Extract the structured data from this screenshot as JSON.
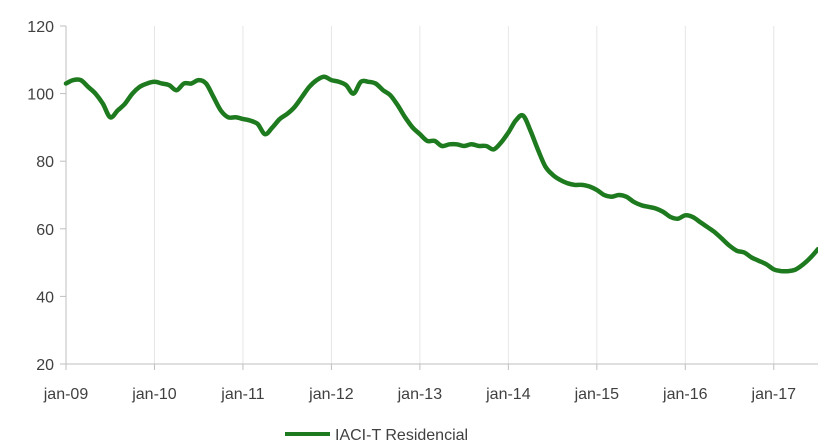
{
  "chart_data": {
    "type": "line",
    "title": "",
    "xlabel": "",
    "ylabel": "",
    "ylim": [
      20,
      120
    ],
    "yticks": [
      20,
      40,
      60,
      80,
      100,
      120
    ],
    "xticks": [
      "jan-09",
      "jan-10",
      "jan-11",
      "jan-12",
      "jan-13",
      "jan-14",
      "jan-15",
      "jan-16",
      "jan-17"
    ],
    "xrange": [
      "2009-01",
      "2017-07"
    ],
    "grid": "vertical",
    "legend_position": "bottom",
    "series": [
      {
        "name": "IACI-T Residencial",
        "color": "#1e7a1e",
        "points": [
          [
            "2009-01",
            103
          ],
          [
            "2009-02",
            104
          ],
          [
            "2009-03",
            104
          ],
          [
            "2009-04",
            102
          ],
          [
            "2009-05",
            100
          ],
          [
            "2009-06",
            97
          ],
          [
            "2009-07",
            93
          ],
          [
            "2009-08",
            95
          ],
          [
            "2009-09",
            97
          ],
          [
            "2009-10",
            100
          ],
          [
            "2009-11",
            102
          ],
          [
            "2009-12",
            103
          ],
          [
            "2010-01",
            103.5
          ],
          [
            "2010-02",
            103
          ],
          [
            "2010-03",
            102.5
          ],
          [
            "2010-04",
            101
          ],
          [
            "2010-05",
            103
          ],
          [
            "2010-06",
            103
          ],
          [
            "2010-07",
            104
          ],
          [
            "2010-08",
            103
          ],
          [
            "2010-09",
            99
          ],
          [
            "2010-10",
            95
          ],
          [
            "2010-11",
            93
          ],
          [
            "2010-12",
            93
          ],
          [
            "2011-01",
            92.5
          ],
          [
            "2011-02",
            92
          ],
          [
            "2011-03",
            91
          ],
          [
            "2011-04",
            88
          ],
          [
            "2011-05",
            90
          ],
          [
            "2011-06",
            92.5
          ],
          [
            "2011-07",
            94
          ],
          [
            "2011-08",
            96
          ],
          [
            "2011-09",
            99
          ],
          [
            "2011-10",
            102
          ],
          [
            "2011-11",
            104
          ],
          [
            "2011-12",
            105
          ],
          [
            "2012-01",
            104
          ],
          [
            "2012-02",
            103.5
          ],
          [
            "2012-03",
            102.5
          ],
          [
            "2012-04",
            100
          ],
          [
            "2012-05",
            103.5
          ],
          [
            "2012-06",
            103.5
          ],
          [
            "2012-07",
            103
          ],
          [
            "2012-08",
            101
          ],
          [
            "2012-09",
            99.5
          ],
          [
            "2012-10",
            96.5
          ],
          [
            "2012-11",
            93
          ],
          [
            "2012-12",
            90
          ],
          [
            "2013-01",
            88
          ],
          [
            "2013-02",
            86
          ],
          [
            "2013-03",
            86
          ],
          [
            "2013-04",
            84.5
          ],
          [
            "2013-05",
            85
          ],
          [
            "2013-06",
            85
          ],
          [
            "2013-07",
            84.5
          ],
          [
            "2013-08",
            85
          ],
          [
            "2013-09",
            84.5
          ],
          [
            "2013-10",
            84.5
          ],
          [
            "2013-11",
            83.5
          ],
          [
            "2013-12",
            85.5
          ],
          [
            "2014-01",
            88.5
          ],
          [
            "2014-02",
            92
          ],
          [
            "2014-03",
            93.5
          ],
          [
            "2014-04",
            89
          ],
          [
            "2014-05",
            83.5
          ],
          [
            "2014-06",
            78.5
          ],
          [
            "2014-07",
            76
          ],
          [
            "2014-08",
            74.5
          ],
          [
            "2014-09",
            73.5
          ],
          [
            "2014-10",
            73
          ],
          [
            "2014-11",
            73
          ],
          [
            "2014-12",
            72.5
          ],
          [
            "2015-01",
            71.5
          ],
          [
            "2015-02",
            70
          ],
          [
            "2015-03",
            69.5
          ],
          [
            "2015-04",
            70
          ],
          [
            "2015-05",
            69.5
          ],
          [
            "2015-06",
            68
          ],
          [
            "2015-07",
            67
          ],
          [
            "2015-08",
            66.5
          ],
          [
            "2015-09",
            66
          ],
          [
            "2015-10",
            65
          ],
          [
            "2015-11",
            63.5
          ],
          [
            "2015-12",
            63
          ],
          [
            "2016-01",
            64
          ],
          [
            "2016-02",
            63.5
          ],
          [
            "2016-03",
            62
          ],
          [
            "2016-04",
            60.5
          ],
          [
            "2016-05",
            59
          ],
          [
            "2016-06",
            57
          ],
          [
            "2016-07",
            55
          ],
          [
            "2016-08",
            53.5
          ],
          [
            "2016-09",
            53
          ],
          [
            "2016-10",
            51.5
          ],
          [
            "2016-11",
            50.5
          ],
          [
            "2016-12",
            49.5
          ],
          [
            "2017-01",
            48
          ],
          [
            "2017-02",
            47.5
          ],
          [
            "2017-03",
            47.5
          ],
          [
            "2017-04",
            48
          ],
          [
            "2017-05",
            49.5
          ],
          [
            "2017-06",
            51.5
          ],
          [
            "2017-07",
            54
          ]
        ]
      }
    ]
  }
}
